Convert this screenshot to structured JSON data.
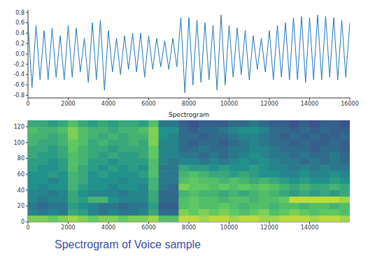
{
  "caption": "Spectrogram of Voice sample",
  "chart_data": [
    {
      "type": "line",
      "x": [
        0,
        200,
        400,
        600,
        800,
        1000,
        1200,
        1400,
        1600,
        1800,
        2000,
        2200,
        2400,
        2600,
        2800,
        3000,
        3200,
        3400,
        3600,
        3800,
        4000,
        4200,
        4400,
        4600,
        4800,
        5000,
        5200,
        5400,
        5600,
        5800,
        6000,
        6200,
        6400,
        6600,
        6800,
        7000,
        7200,
        7400,
        7600,
        7800,
        8000,
        8200,
        8400,
        8600,
        8800,
        9000,
        9200,
        9400,
        9600,
        9800,
        10000,
        10200,
        10400,
        10600,
        10800,
        11000,
        11200,
        11400,
        11600,
        11800,
        12000,
        12200,
        12400,
        12600,
        12800,
        13000,
        13200,
        13400,
        13600,
        13800,
        14000,
        14200,
        14400,
        14600,
        14800,
        15000,
        15200,
        15400,
        15600,
        15800,
        16000
      ],
      "values": [
        0.6,
        -0.65,
        0.55,
        -0.5,
        0.45,
        -0.5,
        0.5,
        -0.45,
        0.35,
        -0.5,
        0.55,
        -0.45,
        0.5,
        -0.35,
        0.3,
        -0.55,
        0.6,
        -0.5,
        0.65,
        -0.7,
        0.45,
        -0.35,
        0.3,
        -0.4,
        0.35,
        -0.3,
        0.4,
        -0.35,
        0.4,
        -0.45,
        0.35,
        -0.3,
        0.3,
        -0.25,
        0.25,
        -0.3,
        0.3,
        -0.25,
        0.7,
        -0.75,
        0.7,
        -0.6,
        0.65,
        -0.55,
        0.6,
        -0.5,
        0.55,
        -0.7,
        0.75,
        -0.6,
        0.55,
        -0.45,
        0.5,
        -0.4,
        0.45,
        -0.5,
        0.35,
        -0.3,
        0.3,
        -0.35,
        0.45,
        -0.5,
        0.55,
        -0.45,
        0.6,
        -0.5,
        0.7,
        -0.5,
        0.72,
        -0.55,
        0.7,
        -0.5,
        0.75,
        -0.5,
        0.72,
        -0.45,
        0.7,
        -0.5,
        0.65,
        -0.45,
        0.6
      ],
      "color": "#1f77b4",
      "xlim": [
        0,
        16000
      ],
      "xticks": [
        0,
        2000,
        4000,
        6000,
        8000,
        10000,
        12000,
        14000,
        16000
      ],
      "ylim": [
        -0.85,
        0.85
      ],
      "yticks": [
        -0.8,
        -0.6,
        -0.4,
        -0.2,
        {
          "value": 0,
          "label": "0.0"
        },
        0.2,
        0.4,
        0.6,
        0.8
      ],
      "grid": false
    },
    {
      "type": "heatmap",
      "title": "Spectrogram",
      "x": [
        250,
        750,
        1250,
        1750,
        2250,
        2750,
        3250,
        3750,
        4250,
        4750,
        5250,
        5750,
        6250,
        6750,
        7250,
        7750,
        8250,
        8750,
        9250,
        9750,
        10250,
        10750,
        11250,
        11750,
        12250,
        12750,
        13250,
        13750,
        14250,
        14750,
        15250,
        15750
      ],
      "y": [
        4,
        12,
        20,
        28,
        36,
        44,
        52,
        60,
        68,
        76,
        84,
        92,
        100,
        108,
        116,
        124
      ],
      "cells": [
        [
          0.8,
          0.8,
          0.75,
          0.8,
          0.85,
          0.8,
          0.75,
          0.8,
          0.8,
          0.75,
          0.8,
          0.8,
          0.85,
          0.7,
          0.7,
          0.9,
          0.9,
          0.85,
          0.9,
          0.9,
          0.85,
          0.9,
          0.9,
          0.85,
          0.85,
          0.9,
          0.9,
          0.9,
          0.85,
          0.9,
          0.9,
          0.85
        ],
        [
          0.45,
          0.4,
          0.45,
          0.4,
          0.6,
          0.55,
          0.45,
          0.4,
          0.45,
          0.4,
          0.4,
          0.45,
          0.6,
          0.35,
          0.35,
          0.8,
          0.75,
          0.8,
          0.75,
          0.8,
          0.75,
          0.7,
          0.75,
          0.8,
          0.7,
          0.75,
          0.8,
          0.75,
          0.7,
          0.75,
          0.75,
          0.7
        ],
        [
          0.4,
          0.35,
          0.4,
          0.4,
          0.55,
          0.5,
          0.45,
          0.4,
          0.4,
          0.35,
          0.4,
          0.4,
          0.55,
          0.3,
          0.3,
          0.7,
          0.75,
          0.7,
          0.7,
          0.75,
          0.7,
          0.65,
          0.7,
          0.7,
          0.65,
          0.7,
          0.7,
          0.65,
          0.7,
          0.7,
          0.65,
          0.7
        ],
        [
          0.45,
          0.4,
          0.45,
          0.45,
          0.6,
          0.55,
          0.65,
          0.65,
          0.5,
          0.45,
          0.45,
          0.45,
          0.6,
          0.35,
          0.35,
          0.7,
          0.75,
          0.7,
          0.7,
          0.65,
          0.7,
          0.7,
          0.65,
          0.7,
          0.7,
          0.75,
          0.9,
          0.9,
          0.9,
          0.9,
          0.9,
          0.85
        ],
        [
          0.45,
          0.45,
          0.4,
          0.45,
          0.6,
          0.5,
          0.45,
          0.45,
          0.45,
          0.4,
          0.45,
          0.45,
          0.6,
          0.35,
          0.35,
          0.65,
          0.7,
          0.65,
          0.65,
          0.6,
          0.65,
          0.6,
          0.65,
          0.7,
          0.65,
          0.6,
          0.55,
          0.6,
          0.55,
          0.6,
          0.55,
          0.6
        ],
        [
          0.5,
          0.45,
          0.5,
          0.5,
          0.65,
          0.55,
          0.5,
          0.5,
          0.45,
          0.5,
          0.5,
          0.45,
          0.65,
          0.4,
          0.35,
          0.8,
          0.75,
          0.75,
          0.7,
          0.75,
          0.7,
          0.75,
          0.7,
          0.75,
          0.7,
          0.65,
          0.6,
          0.65,
          0.6,
          0.6,
          0.65,
          0.6
        ],
        [
          0.5,
          0.5,
          0.45,
          0.5,
          0.65,
          0.6,
          0.5,
          0.5,
          0.5,
          0.45,
          0.5,
          0.5,
          0.65,
          0.4,
          0.4,
          0.7,
          0.75,
          0.7,
          0.7,
          0.65,
          0.7,
          0.65,
          0.6,
          0.65,
          0.6,
          0.55,
          0.5,
          0.55,
          0.5,
          0.5,
          0.55,
          0.5
        ],
        [
          0.5,
          0.5,
          0.55,
          0.5,
          0.65,
          0.6,
          0.5,
          0.55,
          0.5,
          0.5,
          0.5,
          0.55,
          0.7,
          0.4,
          0.4,
          0.65,
          0.7,
          0.65,
          0.6,
          0.6,
          0.55,
          0.6,
          0.55,
          0.5,
          0.5,
          0.45,
          0.45,
          0.5,
          0.45,
          0.45,
          0.5,
          0.45
        ],
        [
          0.55,
          0.5,
          0.5,
          0.55,
          0.7,
          0.6,
          0.55,
          0.5,
          0.55,
          0.5,
          0.55,
          0.5,
          0.7,
          0.4,
          0.4,
          0.6,
          0.55,
          0.55,
          0.5,
          0.55,
          0.5,
          0.5,
          0.55,
          0.5,
          0.45,
          0.45,
          0.4,
          0.45,
          0.4,
          0.45,
          0.4,
          0.4
        ],
        [
          0.55,
          0.55,
          0.5,
          0.55,
          0.7,
          0.65,
          0.55,
          0.55,
          0.5,
          0.55,
          0.55,
          0.55,
          0.7,
          0.45,
          0.4,
          0.45,
          0.45,
          0.4,
          0.45,
          0.4,
          0.45,
          0.5,
          0.45,
          0.5,
          0.45,
          0.4,
          0.4,
          0.35,
          0.4,
          0.35,
          0.4,
          0.35
        ],
        [
          0.6,
          0.55,
          0.55,
          0.6,
          0.7,
          0.65,
          0.6,
          0.55,
          0.6,
          0.55,
          0.55,
          0.6,
          0.75,
          0.45,
          0.45,
          0.4,
          0.4,
          0.35,
          0.4,
          0.35,
          0.4,
          0.45,
          0.5,
          0.45,
          0.4,
          0.4,
          0.35,
          0.4,
          0.35,
          0.35,
          0.4,
          0.35
        ],
        [
          0.6,
          0.6,
          0.55,
          0.6,
          0.75,
          0.65,
          0.6,
          0.6,
          0.55,
          0.6,
          0.6,
          0.6,
          0.75,
          0.45,
          0.45,
          0.35,
          0.35,
          0.4,
          0.35,
          0.35,
          0.4,
          0.4,
          0.45,
          0.45,
          0.4,
          0.35,
          0.35,
          0.35,
          0.3,
          0.35,
          0.35,
          0.3
        ],
        [
          0.65,
          0.6,
          0.6,
          0.65,
          0.75,
          0.7,
          0.6,
          0.65,
          0.6,
          0.6,
          0.65,
          0.6,
          0.8,
          0.45,
          0.45,
          0.35,
          0.3,
          0.35,
          0.35,
          0.3,
          0.35,
          0.4,
          0.45,
          0.4,
          0.35,
          0.35,
          0.3,
          0.35,
          0.3,
          0.3,
          0.35,
          0.3
        ],
        [
          0.65,
          0.65,
          0.6,
          0.65,
          0.8,
          0.7,
          0.65,
          0.6,
          0.65,
          0.6,
          0.65,
          0.65,
          0.8,
          0.5,
          0.45,
          0.35,
          0.35,
          0.3,
          0.35,
          0.35,
          0.4,
          0.45,
          0.45,
          0.4,
          0.35,
          0.3,
          0.35,
          0.3,
          0.35,
          0.3,
          0.3,
          0.35
        ],
        [
          0.7,
          0.65,
          0.65,
          0.7,
          0.8,
          0.7,
          0.65,
          0.65,
          0.6,
          0.65,
          0.65,
          0.7,
          0.8,
          0.5,
          0.5,
          0.35,
          0.3,
          0.35,
          0.35,
          0.4,
          0.45,
          0.5,
          0.5,
          0.45,
          0.35,
          0.35,
          0.3,
          0.35,
          0.3,
          0.35,
          0.3,
          0.3
        ],
        [
          0.6,
          0.6,
          0.55,
          0.6,
          0.7,
          0.6,
          0.55,
          0.6,
          0.55,
          0.6,
          0.6,
          0.55,
          0.7,
          0.4,
          0.4,
          0.3,
          0.25,
          0.3,
          0.3,
          0.3,
          0.35,
          0.35,
          0.4,
          0.35,
          0.3,
          0.3,
          0.25,
          0.3,
          0.25,
          0.3,
          0.3,
          0.25
        ]
      ],
      "zlim": [
        0,
        1
      ],
      "color": "viridis",
      "xlim": [
        0,
        16000
      ],
      "xticks": [
        0,
        2000,
        4000,
        6000,
        8000,
        10000,
        12000,
        14000
      ],
      "ylim": [
        0,
        128
      ],
      "yticks": [
        0,
        20,
        40,
        60,
        80,
        100,
        120
      ],
      "grid": false
    }
  ]
}
